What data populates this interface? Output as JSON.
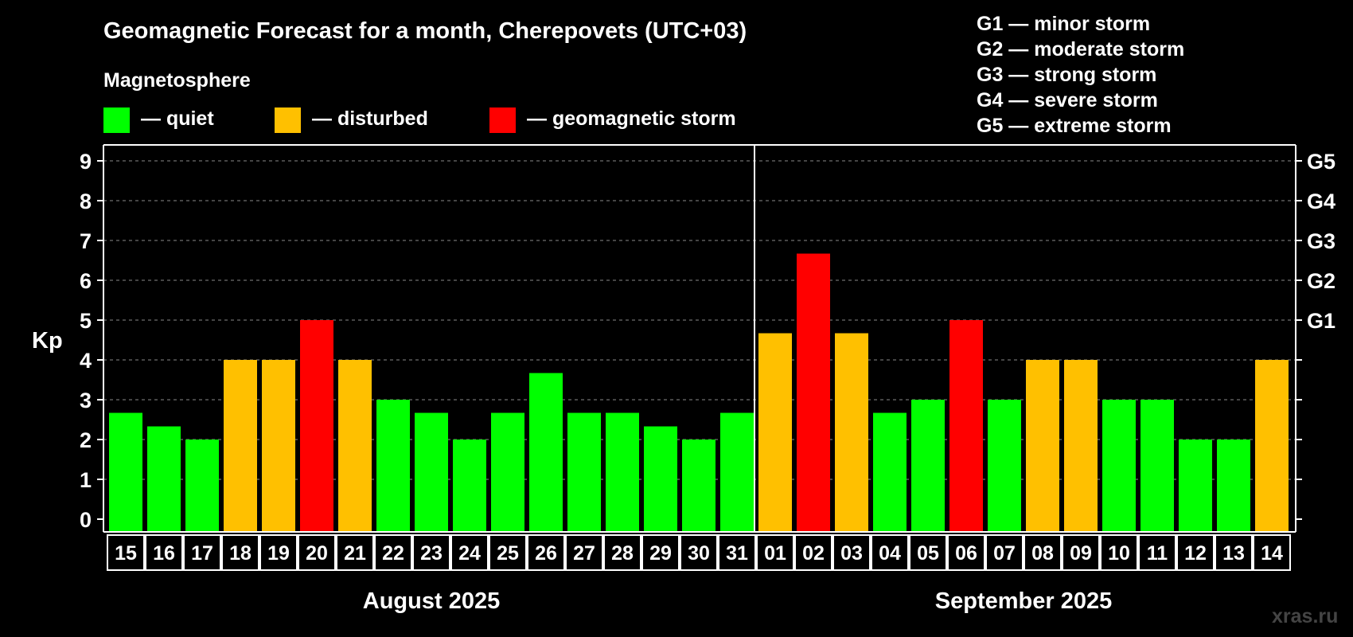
{
  "chart_data": {
    "type": "bar",
    "title": "Geomagnetic Forecast for a month, Cherepovets (UTC+03)",
    "ylabel": "Kp",
    "ylim": [
      0,
      9
    ],
    "yticks": [
      "0",
      "1",
      "2",
      "3",
      "4",
      "5",
      "6",
      "7",
      "8",
      "9"
    ],
    "right_axis_labels": [
      {
        "value": 5,
        "label": "G1"
      },
      {
        "value": 6,
        "label": "G2"
      },
      {
        "value": 7,
        "label": "G3"
      },
      {
        "value": 8,
        "label": "G4"
      },
      {
        "value": 9,
        "label": "G5"
      }
    ],
    "grid": true,
    "categories": [
      "15",
      "16",
      "17",
      "18",
      "19",
      "20",
      "21",
      "22",
      "23",
      "24",
      "25",
      "26",
      "27",
      "28",
      "29",
      "30",
      "31",
      "01",
      "02",
      "03",
      "04",
      "05",
      "06",
      "07",
      "08",
      "09",
      "10",
      "11",
      "12",
      "13",
      "14"
    ],
    "values": [
      2.67,
      2.33,
      2,
      4,
      4,
      5,
      4,
      3,
      2.67,
      2,
      2.67,
      3.67,
      2.67,
      2.67,
      2.33,
      2,
      2.67,
      4.67,
      6.67,
      4.67,
      2.67,
      3,
      5,
      3,
      4,
      4,
      3,
      3,
      2,
      2,
      4
    ],
    "status": [
      "quiet",
      "quiet",
      "quiet",
      "disturbed",
      "disturbed",
      "storm",
      "disturbed",
      "quiet",
      "quiet",
      "quiet",
      "quiet",
      "quiet",
      "quiet",
      "quiet",
      "quiet",
      "quiet",
      "quiet",
      "disturbed",
      "storm",
      "disturbed",
      "quiet",
      "quiet",
      "storm",
      "quiet",
      "disturbed",
      "disturbed",
      "quiet",
      "quiet",
      "quiet",
      "quiet",
      "disturbed"
    ],
    "months": [
      {
        "label": "August 2025",
        "count": 17
      },
      {
        "label": "September 2025",
        "count": 14
      }
    ],
    "legend_title": "Magnetosphere",
    "legend": [
      {
        "key": "quiet",
        "label": "— quiet",
        "color": "#00ff00"
      },
      {
        "key": "disturbed",
        "label": "— disturbed",
        "color": "#ffc000"
      },
      {
        "key": "storm",
        "label": "— geomagnetic storm",
        "color": "#ff0000"
      }
    ],
    "storm_scale": [
      "G1 — minor storm",
      "G2 — moderate storm",
      "G3 — strong storm",
      "G4 — severe storm",
      "G5 — extreme storm"
    ]
  },
  "watermark": "xras.ru"
}
